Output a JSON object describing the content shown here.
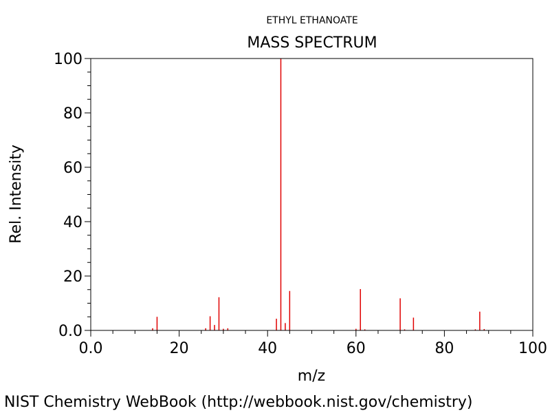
{
  "compound_name": "ETHYL ETHANOATE",
  "footer": "NIST Chemistry WebBook (http://webbook.nist.gov/chemistry)",
  "colors": {
    "peak": "#e00000",
    "axis": "#000000",
    "background": "#ffffff"
  },
  "chart_data": {
    "type": "bar",
    "title": "MASS SPECTRUM",
    "xlabel": "m/z",
    "ylabel": "Rel. Intensity",
    "xlim": [
      0,
      100
    ],
    "ylim": [
      0,
      100
    ],
    "x_tick_labels": [
      "0.0",
      "20",
      "40",
      "60",
      "80",
      "100"
    ],
    "y_tick_labels": [
      "0.0",
      "20",
      "40",
      "60",
      "80",
      "100"
    ],
    "grid": false,
    "series": [
      {
        "x": [
          14,
          15,
          26,
          27,
          28,
          29,
          30,
          31,
          42,
          43,
          44,
          45,
          60,
          61,
          62,
          70,
          71,
          73,
          87,
          88,
          89
        ],
        "values": [
          0.8,
          5.0,
          0.8,
          5.2,
          2.0,
          12.2,
          0.6,
          0.8,
          4.3,
          100,
          2.7,
          14.5,
          0.6,
          15.2,
          0.4,
          11.8,
          0.4,
          4.7,
          0.4,
          6.9,
          0.5
        ]
      }
    ]
  }
}
